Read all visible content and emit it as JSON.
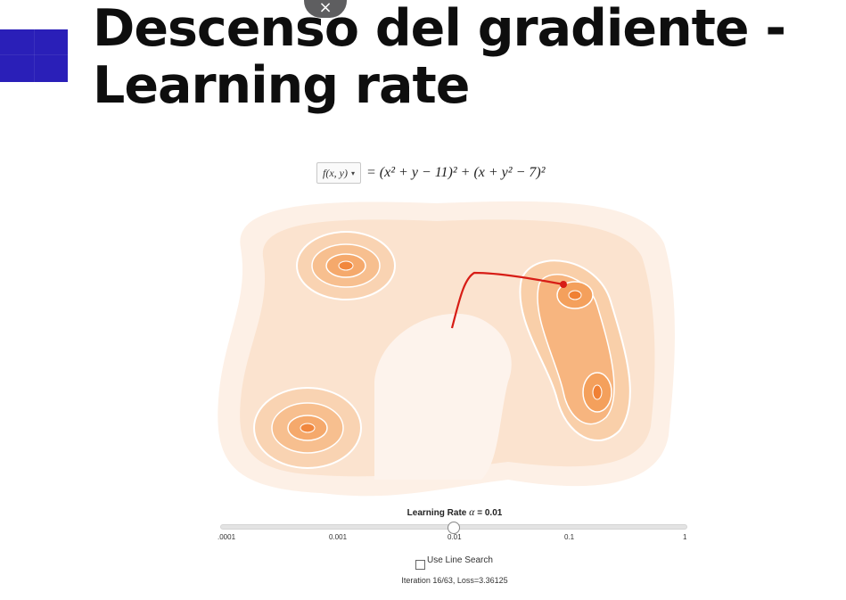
{
  "slide": {
    "title_line1": "Descenso del gradiente -",
    "title_line2": "Learning rate",
    "accent_color": "#2a1fb8"
  },
  "overlay": {
    "close_icon": "close-icon",
    "close_glyph": "×"
  },
  "widget": {
    "function_select_label": "f(x, y)",
    "function_select_caret": "▾",
    "equation": "= (x² + y − 11)² + (x + y² − 7)²",
    "learning_rate_label": "Learning Rate",
    "learning_rate_symbol": "α",
    "learning_rate_value": "= 0.01",
    "slider_ticks": [
      ".0001",
      "0.001",
      "0.01",
      "0.1",
      "1"
    ],
    "slider_value": "0.01",
    "line_search_label": "Use Line Search",
    "line_search_checked": false,
    "status": "Iteration 16/63, Loss=3.36125",
    "colors": {
      "contour_light": "#fdeee3",
      "contour_dark": "#f5a35e",
      "path": "#d71d16"
    }
  }
}
